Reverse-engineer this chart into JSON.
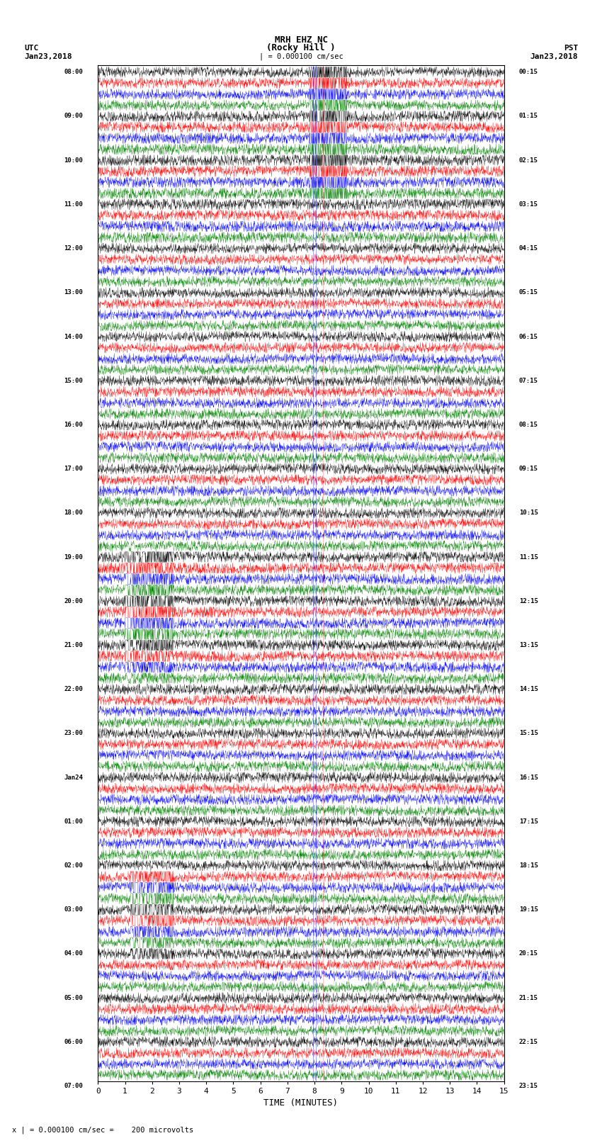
{
  "title_line1": "MRH EHZ NC",
  "title_line2": "(Rocky Hill )",
  "title_line3": "| = 0.000100 cm/sec",
  "left_label_top": "UTC",
  "left_label_date": "Jan23,2018",
  "right_label_top": "PST",
  "right_label_date": "Jan23,2018",
  "xlabel": "TIME (MINUTES)",
  "footnote": "x | = 0.000100 cm/sec =    200 microvolts",
  "bg_color": "#ffffff",
  "trace_colors": [
    "black",
    "red",
    "blue",
    "green"
  ],
  "n_traces": 92,
  "n_points": 1800,
  "xlim": [
    0,
    15
  ],
  "xticks": [
    0,
    1,
    2,
    3,
    4,
    5,
    6,
    7,
    8,
    9,
    10,
    11,
    12,
    13,
    14,
    15
  ],
  "left_times": [
    "08:00",
    "",
    "",
    "",
    "09:00",
    "",
    "",
    "",
    "10:00",
    "",
    "",
    "",
    "11:00",
    "",
    "",
    "",
    "12:00",
    "",
    "",
    "",
    "13:00",
    "",
    "",
    "",
    "14:00",
    "",
    "",
    "",
    "15:00",
    "",
    "",
    "",
    "16:00",
    "",
    "",
    "",
    "17:00",
    "",
    "",
    "",
    "18:00",
    "",
    "",
    "",
    "19:00",
    "",
    "",
    "",
    "20:00",
    "",
    "",
    "",
    "21:00",
    "",
    "",
    "",
    "22:00",
    "",
    "",
    "",
    "23:00",
    "",
    "",
    "",
    "Jan24",
    "",
    "",
    "",
    "01:00",
    "",
    "",
    "",
    "02:00",
    "",
    "",
    "",
    "03:00",
    "",
    "",
    "",
    "04:00",
    "",
    "",
    "",
    "05:00",
    "",
    "",
    "",
    "06:00",
    "",
    "",
    "",
    "07:00",
    "",
    ""
  ],
  "right_times": [
    "00:15",
    "",
    "",
    "",
    "01:15",
    "",
    "",
    "",
    "02:15",
    "",
    "",
    "",
    "03:15",
    "",
    "",
    "",
    "04:15",
    "",
    "",
    "",
    "05:15",
    "",
    "",
    "",
    "06:15",
    "",
    "",
    "",
    "07:15",
    "",
    "",
    "",
    "08:15",
    "",
    "",
    "",
    "09:15",
    "",
    "",
    "",
    "10:15",
    "",
    "",
    "",
    "11:15",
    "",
    "",
    "",
    "12:15",
    "",
    "",
    "",
    "13:15",
    "",
    "",
    "",
    "14:15",
    "",
    "",
    "",
    "15:15",
    "",
    "",
    "",
    "16:15",
    "",
    "",
    "",
    "17:15",
    "",
    "",
    "",
    "18:15",
    "",
    "",
    "",
    "19:15",
    "",
    "",
    "",
    "20:15",
    "",
    "",
    "",
    "21:15",
    "",
    "",
    "",
    "22:15",
    "",
    "",
    "",
    "23:15",
    "",
    ""
  ],
  "figsize": [
    8.5,
    16.13
  ],
  "lw": 0.25
}
